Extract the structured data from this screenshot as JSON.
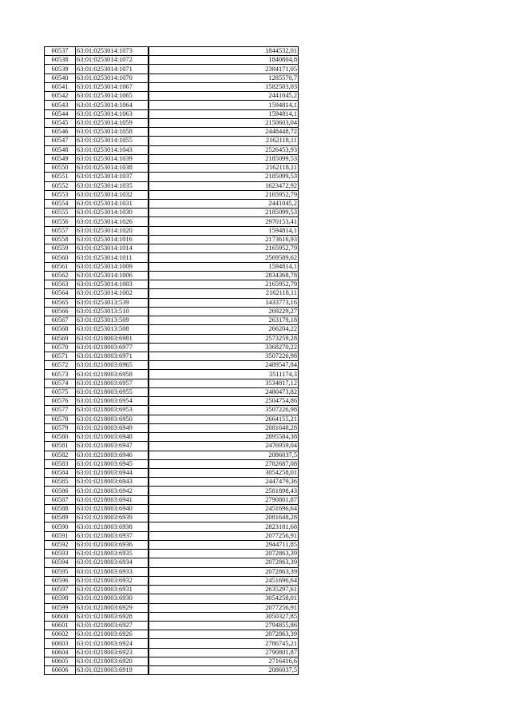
{
  "table": {
    "rows": [
      [
        "60537",
        "63:01:0253014:1073",
        "1844532,01"
      ],
      [
        "60538",
        "63:01:0253014:1072",
        "1840804,8"
      ],
      [
        "60539",
        "63:01:0253014:1071",
        "2384171,05"
      ],
      [
        "60540",
        "63:01:0253014:1070",
        "1285570,7"
      ],
      [
        "60541",
        "63:01:0253014:1067",
        "1582503,03"
      ],
      [
        "60542",
        "63:01:0253014:1065",
        "2441045,2"
      ],
      [
        "60543",
        "63:01:0253014:1064",
        "1594814,1"
      ],
      [
        "60544",
        "63:01:0253014:1063",
        "1594814,1"
      ],
      [
        "60545",
        "63:01:0253014:1059",
        "2150603,04"
      ],
      [
        "60546",
        "63:01:0253014:1058",
        "2448448,72"
      ],
      [
        "60547",
        "63:01:0253014:1055",
        "2162118,11"
      ],
      [
        "60548",
        "63:01:0253014:1043",
        "2526453,93"
      ],
      [
        "60549",
        "63:01:0253014:1039",
        "2185099,53"
      ],
      [
        "60550",
        "63:01:0253014:1038",
        "2162118,11"
      ],
      [
        "60551",
        "63:01:0253014:1037",
        "2185099,53"
      ],
      [
        "60552",
        "63:01:0253014:1035",
        "1623472,92"
      ],
      [
        "60553",
        "63:01:0253014:1032",
        "2165952,79"
      ],
      [
        "60554",
        "63:01:0253014:1031",
        "2441045,2"
      ],
      [
        "60555",
        "63:01:0253014:1030",
        "2185099,53"
      ],
      [
        "60556",
        "63:01:0253014:1026",
        "2970153,41"
      ],
      [
        "60557",
        "63:01:0253014:1020",
        "1594814,1"
      ],
      [
        "60558",
        "63:01:0253014:1016",
        "2173616,93"
      ],
      [
        "60559",
        "63:01:0253014:1014",
        "2165952,79"
      ],
      [
        "60560",
        "63:01:0253014:1011",
        "2569589,62"
      ],
      [
        "60561",
        "63:01:0253014:1009",
        "1594814,1"
      ],
      [
        "60562",
        "63:01:0253014:1006",
        "2834368,78"
      ],
      [
        "60563",
        "63:01:0253014:1003",
        "2165952,79"
      ],
      [
        "60564",
        "63:01:0253014:1002",
        "2162118,11"
      ],
      [
        "60565",
        "63:01:0253013:539",
        "1433773,16"
      ],
      [
        "60566",
        "63:01:0253013:510",
        "269229,27"
      ],
      [
        "60567",
        "63:01:0253013:509",
        "263179,18"
      ],
      [
        "60568",
        "63:01:0253013:508",
        "266204,22"
      ],
      [
        "60569",
        "63:01:0218003:6981",
        "2573259,28"
      ],
      [
        "60570",
        "63:01:0218003:6977",
        "3368270,22"
      ],
      [
        "60571",
        "63:01:0218003:6971",
        "3507226,98"
      ],
      [
        "60572",
        "63:01:0218003:6965",
        "2489547,84"
      ],
      [
        "60573",
        "63:01:0218003:6958",
        "3511174,3"
      ],
      [
        "60574",
        "63:01:0218003:6957",
        "3534817,12"
      ],
      [
        "60575",
        "63:01:0218003:6955",
        "2480473,82"
      ],
      [
        "60576",
        "63:01:0218003:6954",
        "2504754,86"
      ],
      [
        "60577",
        "63:01:0218003:6953",
        "3507226,98"
      ],
      [
        "60578",
        "63:01:0218003:6950",
        "2664155,21"
      ],
      [
        "60579",
        "63:01:0218003:6949",
        "2081648,28"
      ],
      [
        "60580",
        "63:01:0218003:6948",
        "2895584,38"
      ],
      [
        "60581",
        "63:01:0218003:6947",
        "2476959,04"
      ],
      [
        "60582",
        "63:01:0218003:6946",
        "2086037,5"
      ],
      [
        "60583",
        "63:01:0218003:6945",
        "2782687,08"
      ],
      [
        "60584",
        "63:01:0218003:6944",
        "3054258,01"
      ],
      [
        "60585",
        "63:01:0218003:6943",
        "2447479,36"
      ],
      [
        "60586",
        "63:01:0218003:6942",
        "2581898,43"
      ],
      [
        "60587",
        "63:01:0218003:6941",
        "2790801,87"
      ],
      [
        "60588",
        "63:01:0218003:6940",
        "2451696,64"
      ],
      [
        "60589",
        "63:01:0218003:6939",
        "2081648,28"
      ],
      [
        "60590",
        "63:01:0218003:6938",
        "2823181,68"
      ],
      [
        "60591",
        "63:01:0218003:6937",
        "2077256,91"
      ],
      [
        "60592",
        "63:01:0218003:6936",
        "2944711,85"
      ],
      [
        "60593",
        "63:01:0218003:6935",
        "2072863,39"
      ],
      [
        "60594",
        "63:01:0218003:6934",
        "2072863,39"
      ],
      [
        "60595",
        "63:01:0218003:6933",
        "2072863,39"
      ],
      [
        "60596",
        "63:01:0218003:6932",
        "2451696,64"
      ],
      [
        "60597",
        "63:01:0218003:6931",
        "2635297,61"
      ],
      [
        "60598",
        "63:01:0218003:6930",
        "3054258,01"
      ],
      [
        "60599",
        "63:01:0218003:6929",
        "2077256,91"
      ],
      [
        "60600",
        "63:01:0218003:6928",
        "3050327,85"
      ],
      [
        "60601",
        "63:01:0218003:6927",
        "2794855,86"
      ],
      [
        "60602",
        "63:01:0218003:6926",
        "2072863,39"
      ],
      [
        "60603",
        "63:01:0218003:6924",
        "2786745,21"
      ],
      [
        "60604",
        "63:01:0218003:6923",
        "2790801,87"
      ],
      [
        "60605",
        "63:01:0218003:6920",
        "2716416,6"
      ],
      [
        "60606",
        "63:01:0218003:6919",
        "2086037,5"
      ]
    ]
  }
}
